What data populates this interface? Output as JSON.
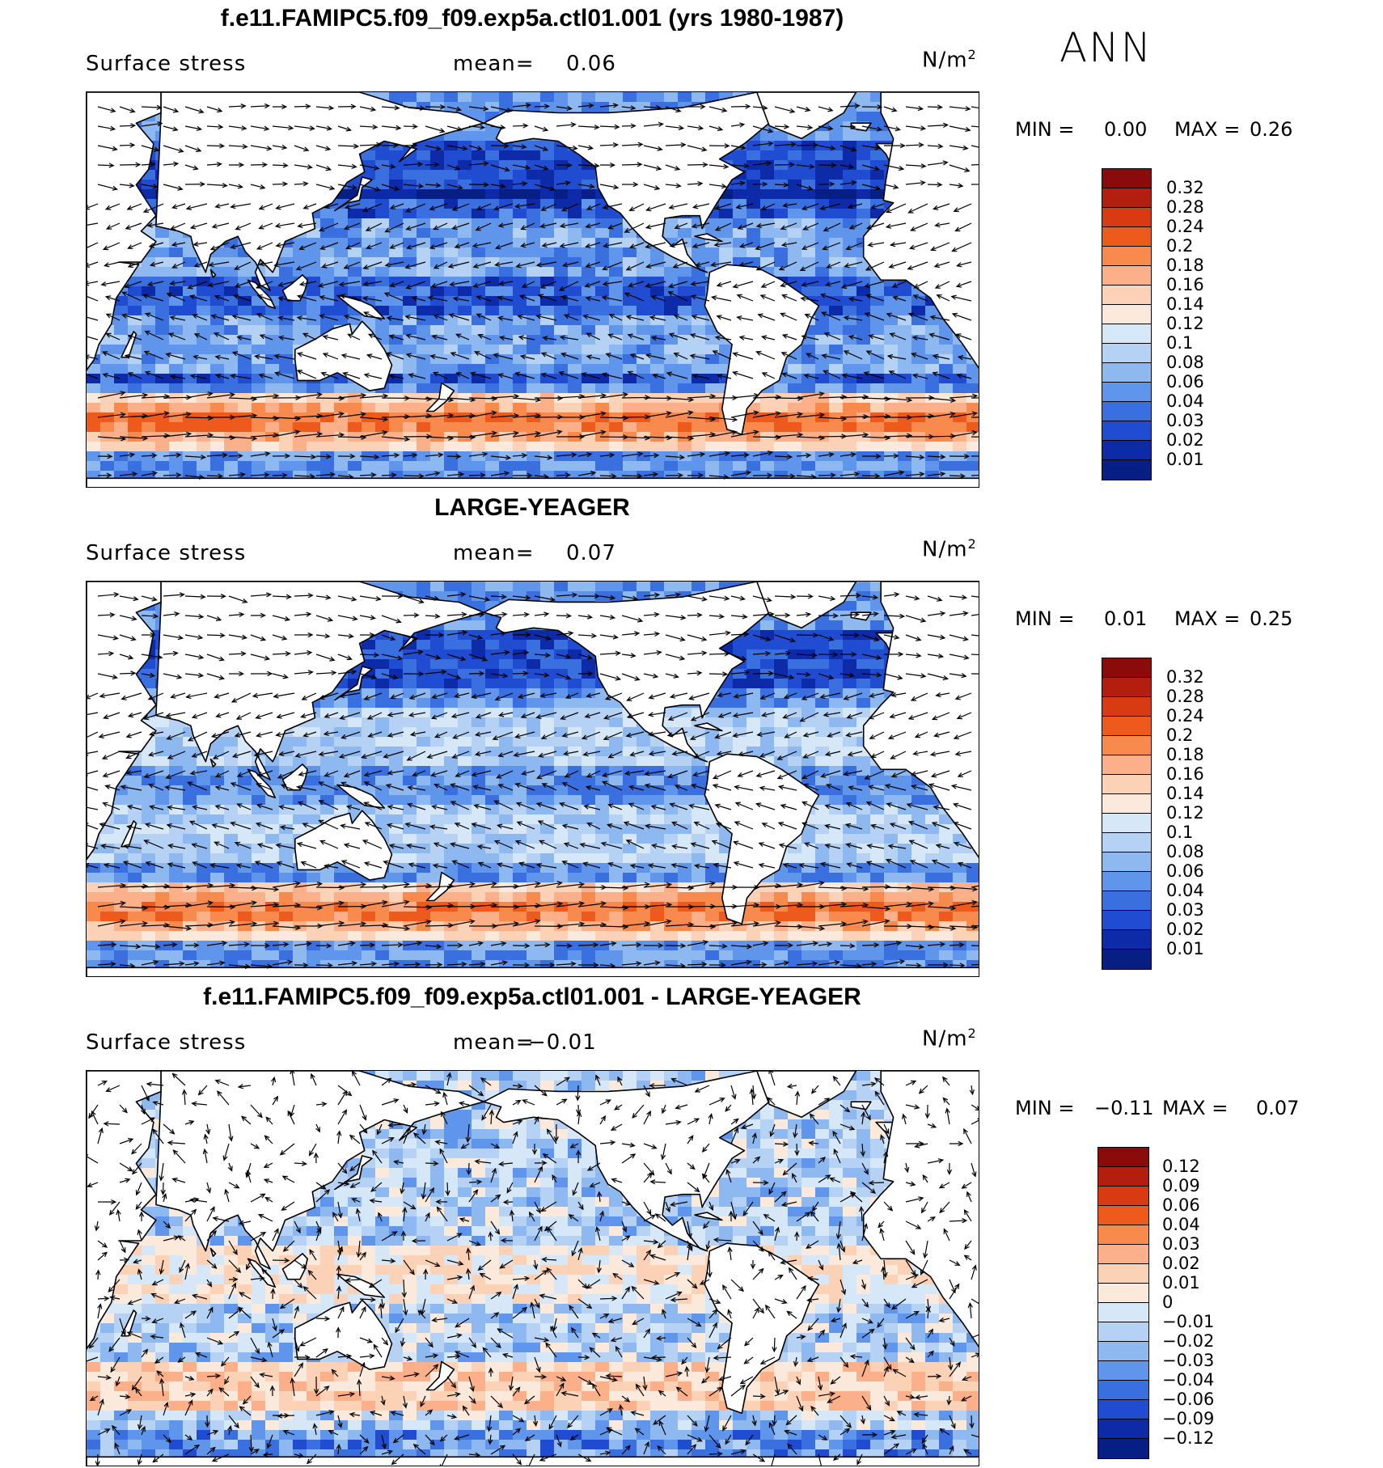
{
  "season": "ANN",
  "panels": [
    {
      "title": "f.e11.FAMIPC5.f09_f09.exp5a.ctl01.001 (yrs 1980-1987)",
      "variable": "Surface stress",
      "mean_label": "mean=",
      "mean_value": "0.06",
      "unit": "N/m",
      "unit_exp": "2",
      "min_label": "MIN =",
      "min_value": "0.00",
      "max_label": "MAX =",
      "max_value": "0.26",
      "colorbar": {
        "labels": [
          "0.32",
          "0.28",
          "0.24",
          "0.2",
          "0.18",
          "0.16",
          "0.14",
          "0.12",
          "0.1",
          "0.08",
          "0.06",
          "0.04",
          "0.03",
          "0.02",
          "0.01"
        ],
        "colors": [
          "#8b0a0a",
          "#b41e0f",
          "#d83a12",
          "#ee5a1c",
          "#f98a4e",
          "#fcb089",
          "#fcd2b6",
          "#fbeadb",
          "#d6e8f8",
          "#b5d2f5",
          "#8db8f0",
          "#5f95ea",
          "#3a6fe0",
          "#1f4cd0",
          "#0d2aa8",
          "#071f85"
        ]
      },
      "regime": "ctl"
    },
    {
      "title": "LARGE-YEAGER",
      "variable": "Surface stress",
      "mean_label": "mean=",
      "mean_value": "0.07",
      "unit": "N/m",
      "unit_exp": "2",
      "min_label": "MIN =",
      "min_value": "0.01",
      "max_label": "MAX =",
      "max_value": "0.25",
      "colorbar": {
        "labels": [
          "0.32",
          "0.28",
          "0.24",
          "0.2",
          "0.18",
          "0.16",
          "0.14",
          "0.12",
          "0.1",
          "0.08",
          "0.06",
          "0.04",
          "0.03",
          "0.02",
          "0.01"
        ],
        "colors": [
          "#8b0a0a",
          "#b41e0f",
          "#d83a12",
          "#ee5a1c",
          "#f98a4e",
          "#fcb089",
          "#fcd2b6",
          "#fbeadb",
          "#d6e8f8",
          "#b5d2f5",
          "#8db8f0",
          "#5f95ea",
          "#3a6fe0",
          "#1f4cd0",
          "#0d2aa8",
          "#071f85"
        ]
      },
      "regime": "obs"
    },
    {
      "title": "f.e11.FAMIPC5.f09_f09.exp5a.ctl01.001 - LARGE-YEAGER",
      "variable": "Surface stress",
      "mean_label": "mean=",
      "mean_value": "−0.01",
      "unit": "N/m",
      "unit_exp": "2",
      "min_label": "MIN =",
      "min_value": "−0.11",
      "max_label": "MAX =",
      "max_value": "0.07",
      "colorbar": {
        "labels": [
          "0.12",
          "0.09",
          "0.06",
          "0.04",
          "0.03",
          "0.02",
          "0.01",
          "0",
          "−0.01",
          "−0.02",
          "−0.03",
          "−0.04",
          "−0.06",
          "−0.09",
          "−0.12"
        ],
        "colors": [
          "#8b0a0a",
          "#b41e0f",
          "#d83a12",
          "#ee5a1c",
          "#f98a4e",
          "#fcb089",
          "#fcd2b6",
          "#fbeadb",
          "#d6e8f8",
          "#b5d2f5",
          "#8db8f0",
          "#5f95ea",
          "#3a6fe0",
          "#1f4cd0",
          "#0d2aa8",
          "#071f85"
        ]
      },
      "regime": "diff"
    }
  ]
}
